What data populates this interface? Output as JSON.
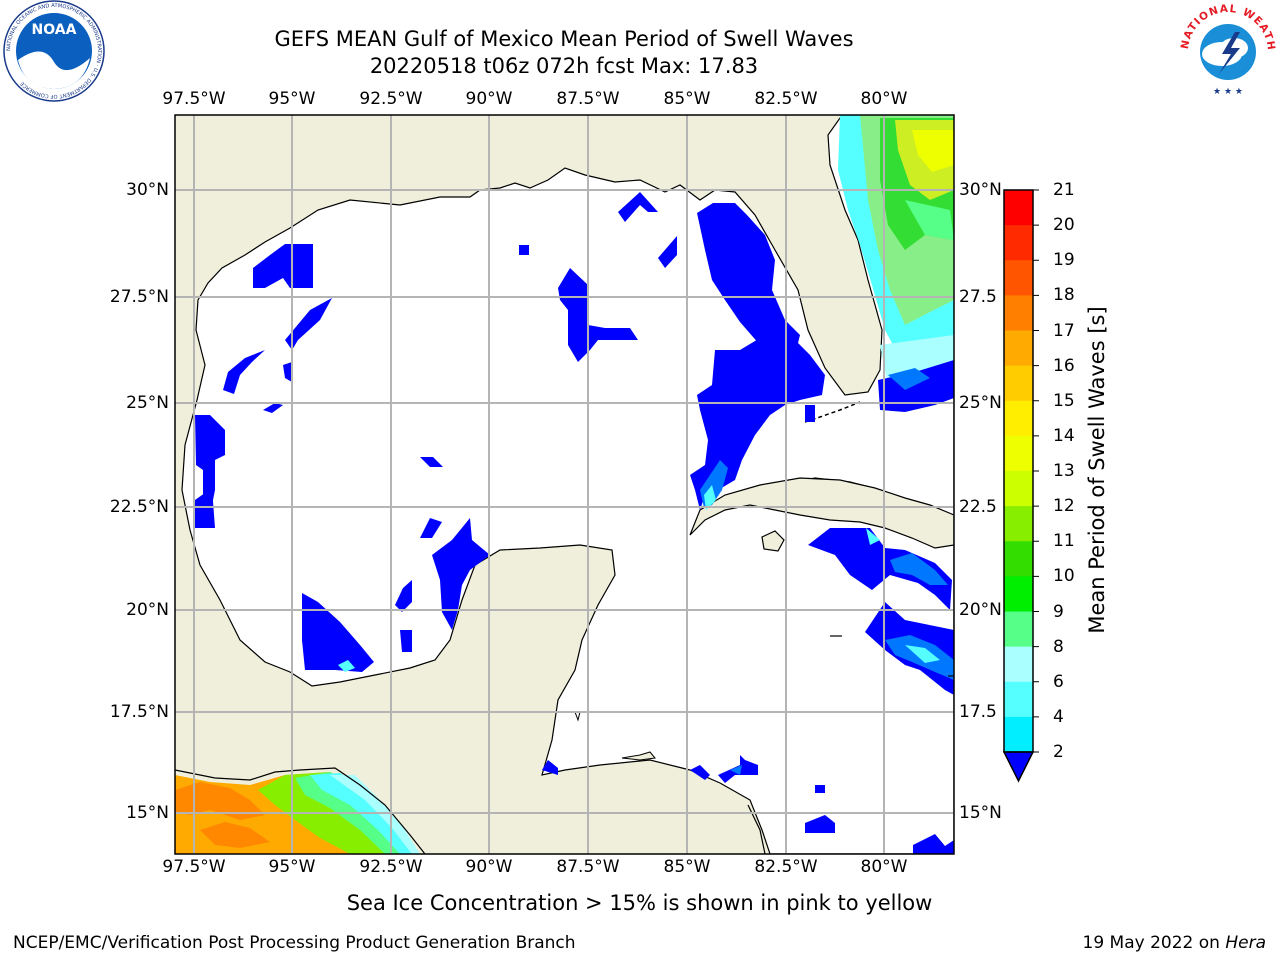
{
  "header": {
    "title": "GEFS MEAN Gulf of Mexico Mean Period of Swell Waves",
    "subtitle": "20220518 t06z 072h fcst   Max: 17.83"
  },
  "logos": {
    "left_text": "NOAA",
    "left_ring_text": "NATIONAL OCEANIC AND ATMOSPHERIC ADMINISTRATION · U.S. DEPARTMENT OF COMMERCE",
    "right_ring_text": "NATIONAL WEATHER SERVICE"
  },
  "map": {
    "lon_labels": [
      "97.5°W",
      "95°W",
      "92.5°W",
      "90°W",
      "87.5°W",
      "85°W",
      "82.5°W",
      "80°W"
    ],
    "lat_labels": [
      "30°N",
      "27.5°N",
      "25°N",
      "22.5°N",
      "20°N",
      "17.5°N",
      "15°N"
    ],
    "lat_labels_right": [
      "30°N",
      "27.5",
      "25°N",
      "22.5",
      "20°N",
      "17.5",
      "15°N"
    ],
    "colors": {
      "land": "#efefdc",
      "ocean": "#ffffff",
      "grid": "#b4b4b4"
    }
  },
  "colorbar": {
    "label": "Mean Period of Swell Waves [s]",
    "ticks": [
      "21",
      "20",
      "19",
      "18",
      "17",
      "16",
      "15",
      "14",
      "13",
      "12",
      "11",
      "10",
      "9",
      "8",
      "6",
      "4",
      "2"
    ],
    "colors": [
      "#ff0000",
      "#ff2a00",
      "#ff5500",
      "#ff8000",
      "#ffaa00",
      "#ffcc00",
      "#ffee00",
      "#eeff00",
      "#ccff00",
      "#88ee00",
      "#33dd00",
      "#00ee00",
      "#55ff88",
      "#aaffff",
      "#55ffff",
      "#00eeff",
      "#0077ff",
      "#0000ff"
    ]
  },
  "footer": {
    "note": "Sea Ice Concentration > 15% is shown in pink to yellow",
    "credit": "NCEP/EMC/Verification Post Processing Product Generation Branch",
    "date": "19 May 2022 on",
    "machine": "Hera"
  }
}
